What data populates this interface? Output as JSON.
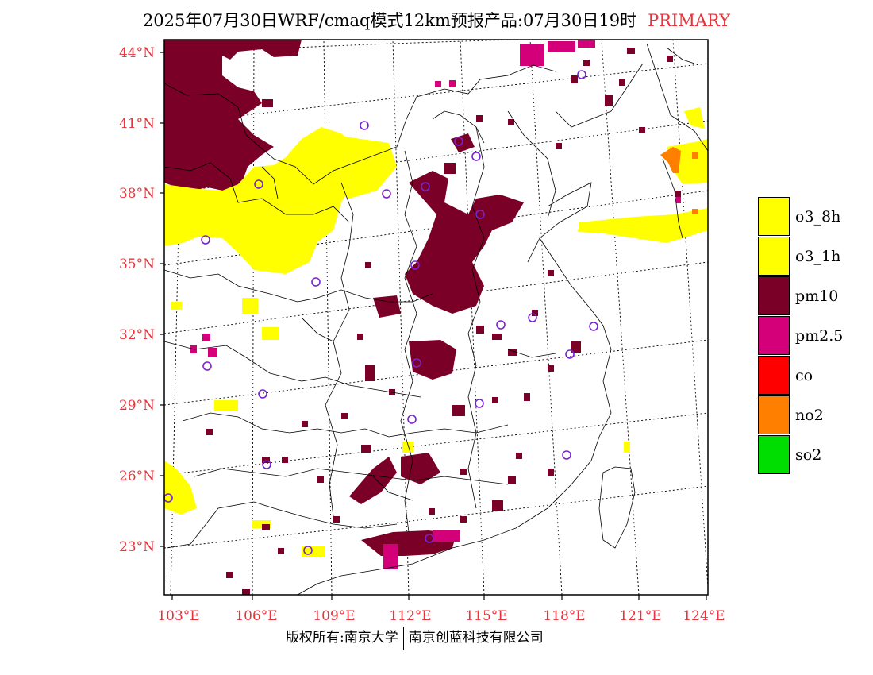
{
  "title": {
    "main": "2025年07月30日WRF/cmaq模式12km预报产品:07月30日19时",
    "tag": "PRIMARY"
  },
  "axes": {
    "lat_labels": [
      "44°N",
      "41°N",
      "38°N",
      "35°N",
      "32°N",
      "29°N",
      "26°N",
      "23°N"
    ],
    "lon_labels": [
      "103°E",
      "106°E",
      "109°E",
      "112°E",
      "115°E",
      "118°E",
      "121°E",
      "124°E"
    ]
  },
  "legend": [
    {
      "label": "o3_8h",
      "color": "#ffff00"
    },
    {
      "label": "o3_1h",
      "color": "#ffff00"
    },
    {
      "label": "pm10",
      "color": "#7a0028"
    },
    {
      "label": "pm2.5",
      "color": "#d4007a"
    },
    {
      "label": "co",
      "color": "#ff0000"
    },
    {
      "label": "no2",
      "color": "#ff7f00"
    },
    {
      "label": "so2",
      "color": "#00dd00"
    }
  ],
  "footer": {
    "left": "版权所有:南京大学",
    "right": "南京创蓝科技有限公司"
  },
  "colors": {
    "o3": "#ffff00",
    "pm10": "#7a0028",
    "pm25": "#d4007a",
    "no2": "#ff7f00",
    "station": "#7a22d4",
    "accent": "#e8333a"
  }
}
